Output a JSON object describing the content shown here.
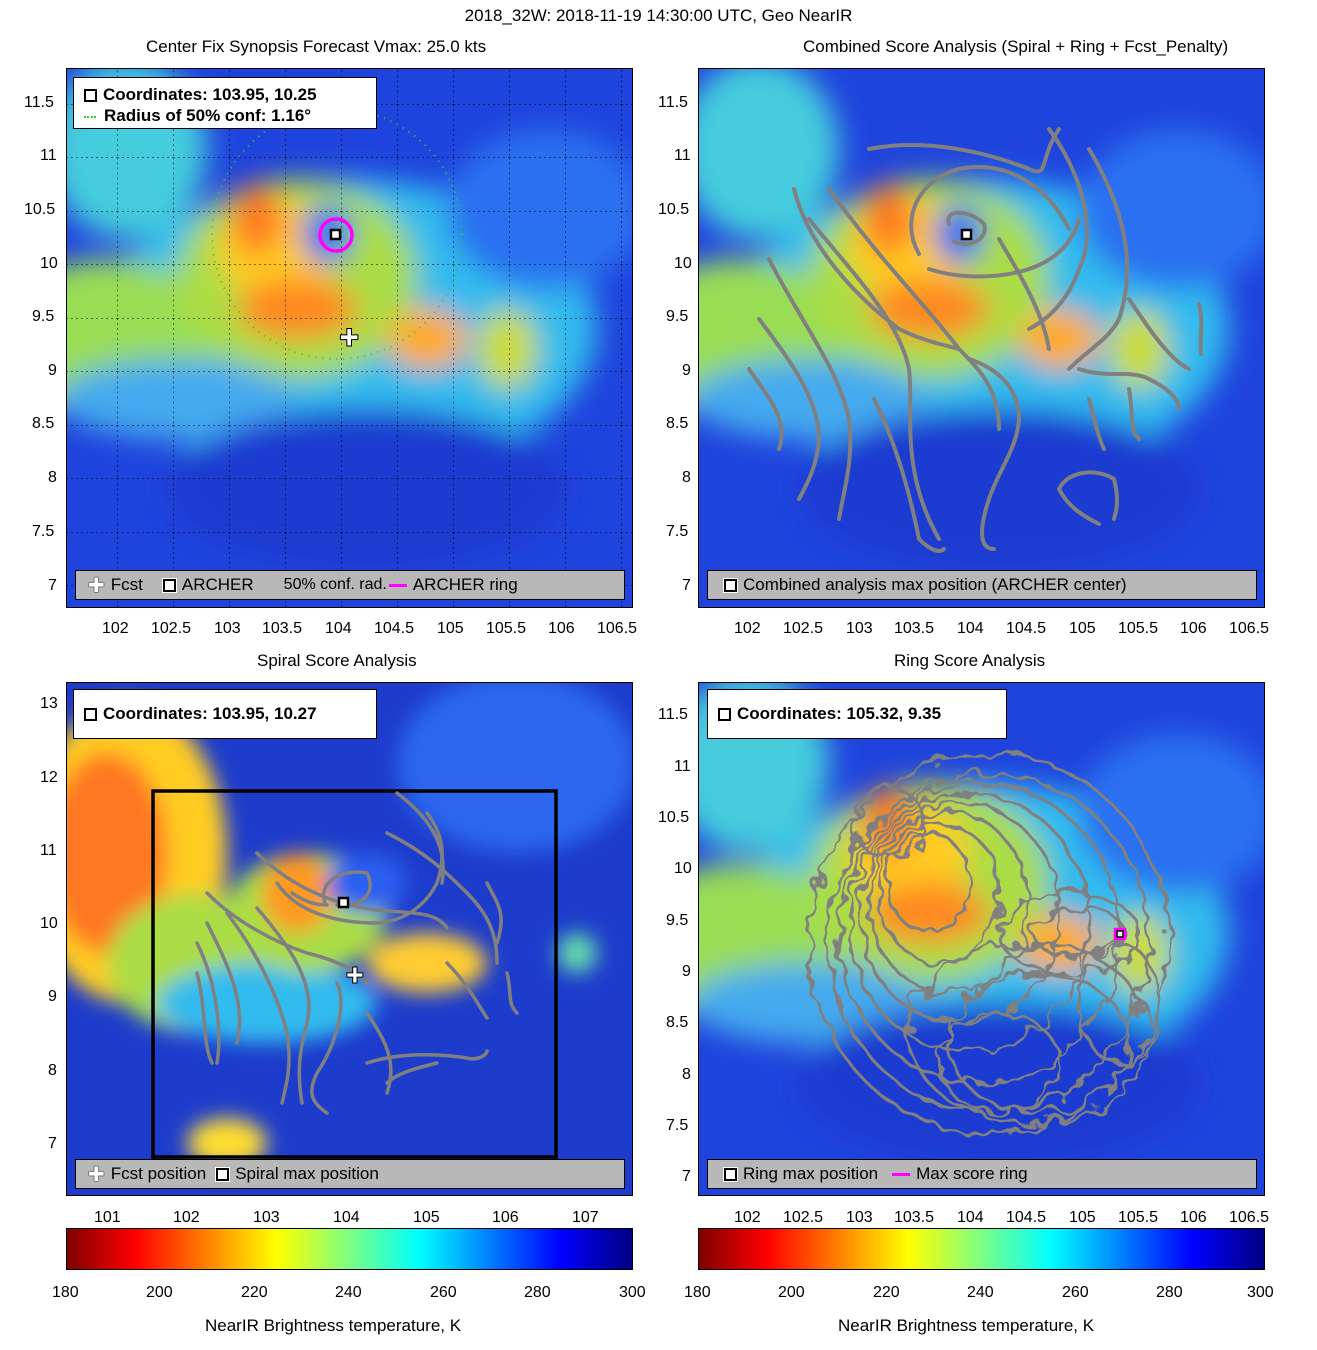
{
  "header": {
    "title": "2018_32W: 2018-11-19 14:30:00 UTC, Geo NearIR"
  },
  "panel_tl": {
    "title": "Center Fix Synopsis      Forecast Vmax: 25.0 kts",
    "info_coords": "Coordinates: 103.95, 10.25",
    "info_radius": "Radius of 50% conf: 1.16°",
    "legend": {
      "fcst": "Fcst",
      "archer": "ARCHER",
      "conf": "50% conf. rad.",
      "ring": "ARCHER ring"
    }
  },
  "panel_tr": {
    "title": "Combined Score Analysis (Spiral + Ring + Fcst_Penalty)",
    "legend": {
      "max": "Combined analysis max position (ARCHER center)"
    }
  },
  "panel_bl": {
    "title": "Spiral Score Analysis",
    "info_coords": "Coordinates: 103.95, 10.27",
    "legend": {
      "fcst": "Fcst position",
      "spiral": "Spiral max position"
    }
  },
  "panel_br": {
    "title": "Ring Score Analysis",
    "info_coords": "Coordinates: 105.32, 9.35",
    "legend": {
      "ring_max": "Ring max position",
      "ring": "Max score ring"
    }
  },
  "colorbar": {
    "label": "NearIR Brightness temperature, K",
    "ticks": [
      "180",
      "200",
      "220",
      "240",
      "260",
      "280",
      "300"
    ]
  },
  "colors": {
    "archer_ring": "#ff00ff",
    "contour": "#808080",
    "conf": "#33cc33"
  },
  "chart_data": [
    {
      "type": "heatmap",
      "title": "Center Fix Synopsis",
      "x_ticks": [
        "102",
        "102.5",
        "103",
        "103.5",
        "104",
        "104.5",
        "105",
        "105.5",
        "106",
        "106.5"
      ],
      "y_ticks": [
        "7",
        "7.5",
        "8",
        "8.5",
        "9",
        "9.5",
        "10",
        "10.5",
        "11",
        "11.5"
      ],
      "xlim": [
        101.55,
        106.8
      ],
      "ylim": [
        6.75,
        11.8
      ],
      "archer_center": [
        103.95,
        10.25
      ],
      "forecast_position": [
        104.05,
        9.3
      ],
      "conf_radius_deg": 1.16
    },
    {
      "type": "heatmap",
      "title": "Combined Score Analysis (Spiral + Ring + Fcst_Penalty)",
      "x_ticks": [
        "102",
        "102.5",
        "103",
        "103.5",
        "104",
        "104.5",
        "105",
        "105.5",
        "106",
        "106.5"
      ],
      "y_ticks": [
        "7",
        "7.5",
        "8",
        "8.5",
        "9",
        "9.5",
        "10",
        "10.5",
        "11",
        "11.5"
      ],
      "xlim": [
        101.55,
        106.8
      ],
      "ylim": [
        6.75,
        11.8
      ],
      "max_position": [
        103.95,
        10.25
      ]
    },
    {
      "type": "heatmap",
      "title": "Spiral Score Analysis",
      "x_ticks": [
        "101",
        "102",
        "103",
        "104",
        "105",
        "106",
        "107"
      ],
      "y_ticks": [
        "7",
        "8",
        "9",
        "10",
        "11",
        "12",
        "13"
      ],
      "xlim": [
        100.3,
        107.6
      ],
      "ylim": [
        6.3,
        13.3
      ],
      "spiral_max": [
        103.95,
        10.27
      ],
      "forecast_position": [
        104.05,
        9.3
      ]
    },
    {
      "type": "heatmap",
      "title": "Ring Score Analysis",
      "x_ticks": [
        "102",
        "102.5",
        "103",
        "103.5",
        "104",
        "104.5",
        "105",
        "105.5",
        "106",
        "106.5"
      ],
      "y_ticks": [
        "7",
        "7.5",
        "8",
        "8.5",
        "9",
        "9.5",
        "10",
        "10.5",
        "11",
        "11.5"
      ],
      "xlim": [
        101.55,
        106.8
      ],
      "ylim": [
        6.75,
        11.8
      ],
      "ring_max": [
        105.32,
        9.35
      ]
    }
  ]
}
